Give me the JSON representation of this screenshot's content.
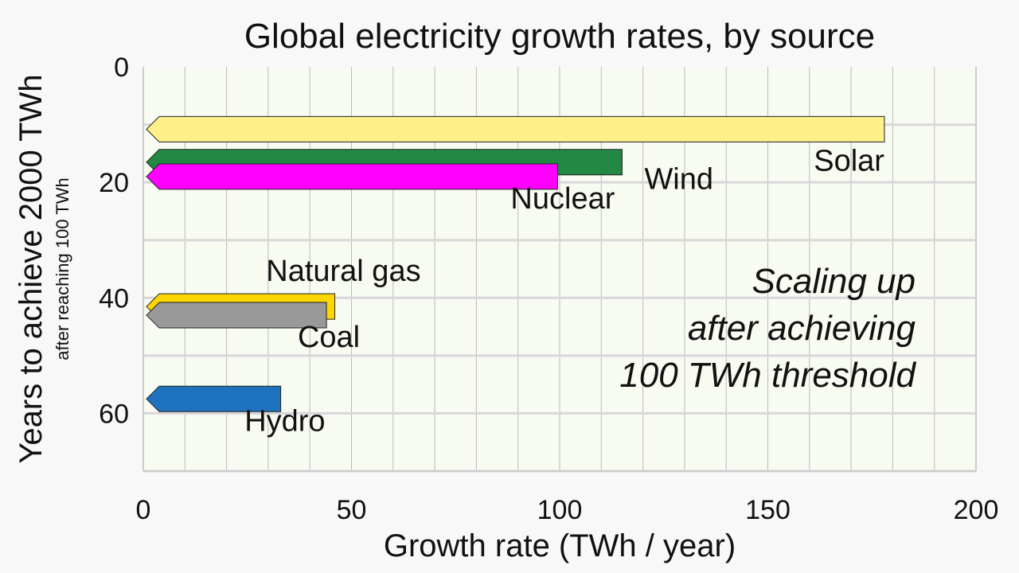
{
  "chart_data": {
    "type": "bar",
    "orientation": "horizontal",
    "title": "Global electricity growth rates, by source",
    "xlabel": "Growth rate (TWh / year)",
    "ylabel": "Years to achieve 2000 TWh",
    "ylabel_sub": "after reaching 100 TWh",
    "xlim": [
      0,
      200
    ],
    "ylim": [
      0,
      70
    ],
    "y_inverted": true,
    "x_ticks": [
      0,
      50,
      100,
      150,
      200
    ],
    "y_ticks": [
      0,
      20,
      40,
      60
    ],
    "grid": true,
    "annotation": [
      "Scaling up",
      "after achieving",
      "100 TWh threshold"
    ],
    "series": [
      {
        "name": "Solar",
        "x": 178,
        "y": 10.8,
        "color": "#fff08a"
      },
      {
        "name": "Wind",
        "x": 115,
        "y": 16.5,
        "color": "#228844"
      },
      {
        "name": "Nuclear",
        "x": 99.5,
        "y": 19,
        "color": "#ff00ff"
      },
      {
        "name": "Natural gas",
        "x": 46,
        "y": 41.5,
        "color": "#ffd700"
      },
      {
        "name": "Coal",
        "x": 44,
        "y": 43,
        "color": "#999999"
      },
      {
        "name": "Hydro",
        "x": 33,
        "y": 57.5,
        "color": "#1f73be"
      }
    ]
  }
}
